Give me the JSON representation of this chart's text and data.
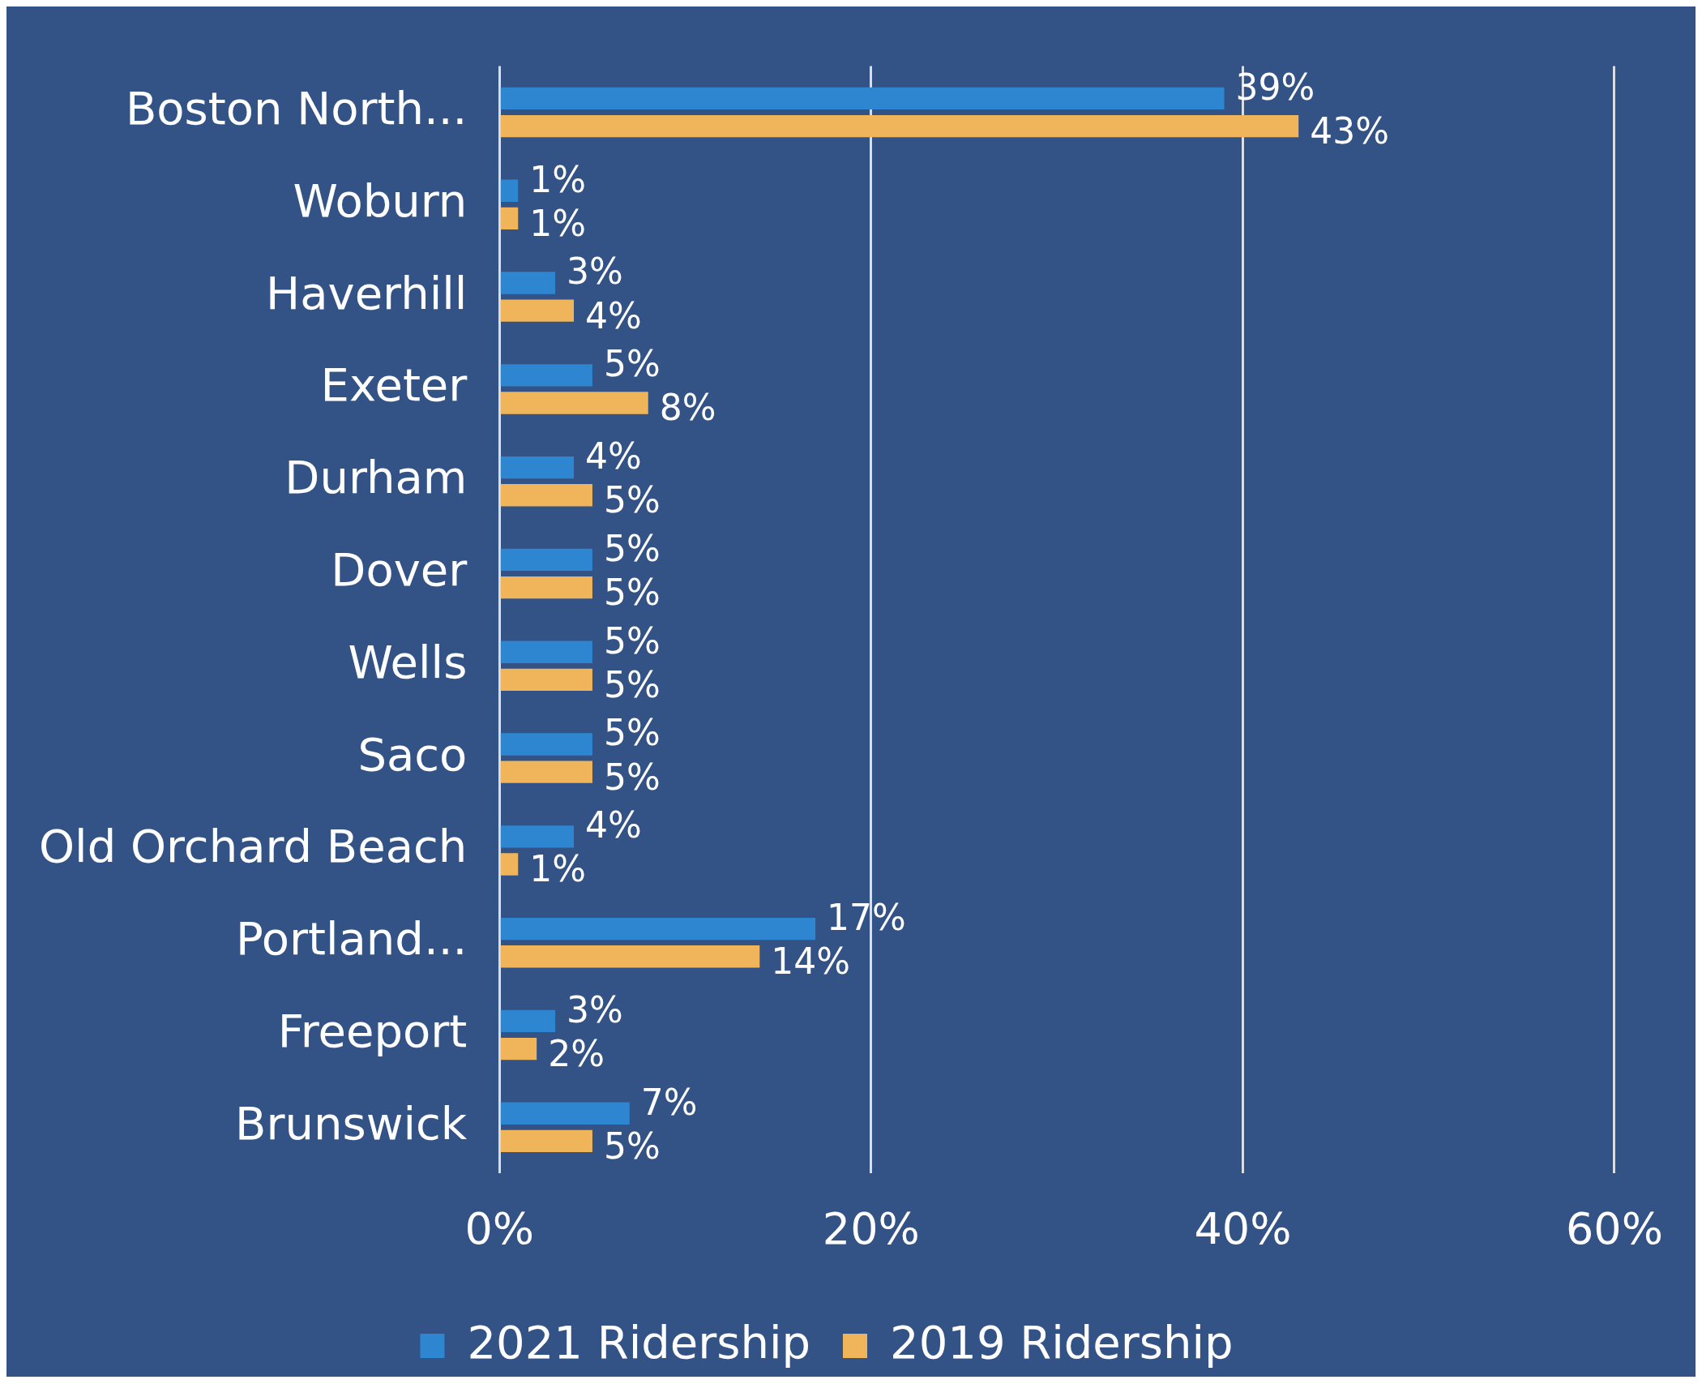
{
  "chart_data": {
    "type": "bar",
    "orientation": "horizontal",
    "categories": [
      "Boston North...",
      "Woburn",
      "Haverhill",
      "Exeter",
      "Durham",
      "Dover",
      "Wells",
      "Saco",
      "Old Orchard Beach",
      "Portland...",
      "Freeport",
      "Brunswick"
    ],
    "series": [
      {
        "name": "2021 Ridership",
        "color": "#2e86d0",
        "values": [
          39,
          1,
          3,
          5,
          4,
          5,
          5,
          5,
          4,
          17,
          3,
          7
        ],
        "value_labels": [
          "39%",
          "1%",
          "3%",
          "5%",
          "4%",
          "5%",
          "5%",
          "5%",
          "4%",
          "17%",
          "3%",
          "7%"
        ]
      },
      {
        "name": "2019 Ridership",
        "color": "#f0b55a",
        "values": [
          43,
          1,
          4,
          8,
          5,
          5,
          5,
          5,
          1,
          14,
          2,
          5
        ],
        "value_labels": [
          "43%",
          "1%",
          "4%",
          "8%",
          "5%",
          "5%",
          "5%",
          "5%",
          "1%",
          "14%",
          "2%",
          "5%"
        ]
      }
    ],
    "xlim": [
      0,
      60
    ],
    "xticks": [
      {
        "value": 0,
        "label": "0%"
      },
      {
        "value": 20,
        "label": "20%"
      },
      {
        "value": 40,
        "label": "40%"
      },
      {
        "value": 60,
        "label": "60%"
      }
    ],
    "grid": "x",
    "legend": "bottom"
  }
}
